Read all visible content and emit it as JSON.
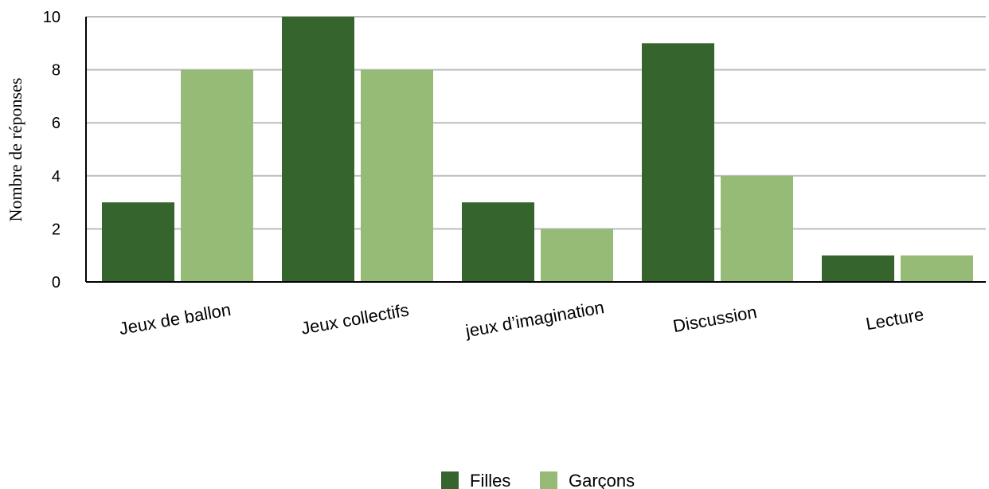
{
  "chart_data": {
    "type": "bar",
    "title": "",
    "xlabel": "",
    "ylabel": "Nombre de réponses",
    "categories": [
      "Jeux de ballon",
      "Jeux collectifs",
      "jeux d’imagination",
      "Discussion",
      "Lecture"
    ],
    "series": [
      {
        "name": "Filles",
        "values": [
          3,
          10,
          3,
          9,
          1
        ],
        "color": "#35652c"
      },
      {
        "name": "Garçons",
        "values": [
          8,
          8,
          2,
          4,
          1
        ],
        "color": "#95bb76"
      }
    ],
    "ylim": [
      0,
      10
    ],
    "yticks": [
      0,
      2,
      4,
      6,
      8,
      10
    ],
    "grid": true,
    "legend_position": "bottom-center"
  }
}
